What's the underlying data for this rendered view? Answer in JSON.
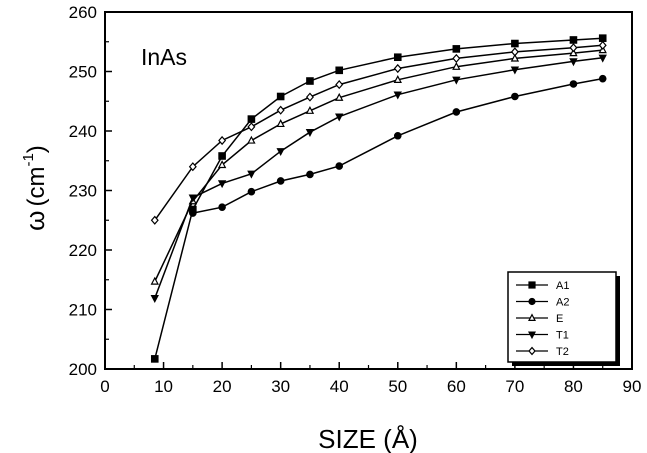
{
  "chart_data": {
    "type": "line",
    "annotation": "InAs",
    "xlabel": "SIZE (Å)",
    "ylabel_symbol": "ω",
    "ylabel_unit": "(cm",
    "ylabel_exp": "-1",
    "ylabel_close": ")",
    "xlim": [
      0,
      90
    ],
    "ylim": [
      200,
      260
    ],
    "xticks": [
      0,
      10,
      20,
      30,
      40,
      50,
      60,
      70,
      80,
      90
    ],
    "yticks": [
      200,
      210,
      220,
      230,
      240,
      250,
      260
    ],
    "grid": false,
    "legend_position": "lower-right",
    "series": [
      {
        "name": "A1",
        "marker": "square-filled",
        "x": [
          8.5,
          15,
          20,
          25,
          30,
          35,
          40,
          50,
          60,
          70,
          80,
          85
        ],
        "y": [
          201.7,
          226.8,
          235.8,
          242,
          245.8,
          248.4,
          250.2,
          252.4,
          253.8,
          254.7,
          255.3,
          255.6
        ]
      },
      {
        "name": "A2",
        "marker": "circle-filled",
        "x": [
          15,
          20,
          25,
          30,
          35,
          40,
          50,
          60,
          70,
          80,
          85
        ],
        "y": [
          226.2,
          227.2,
          229.8,
          231.6,
          232.7,
          234.1,
          239.2,
          243.2,
          245.8,
          247.9,
          248.8
        ]
      },
      {
        "name": "E",
        "marker": "triangle-up-open",
        "x": [
          8.5,
          15,
          20,
          25,
          30,
          35,
          40,
          50,
          60,
          70,
          80,
          85
        ],
        "y": [
          214.7,
          228.2,
          234.3,
          238.4,
          241.2,
          243.4,
          245.6,
          248.6,
          250.8,
          252.2,
          253.1,
          253.6
        ]
      },
      {
        "name": "T1",
        "marker": "triangle-down-filled",
        "x": [
          8.5,
          15,
          20,
          25,
          30,
          35,
          40,
          50,
          60,
          70,
          80,
          85
        ],
        "y": [
          211.9,
          228.8,
          231.2,
          232.8,
          236.6,
          239.8,
          242.4,
          246.1,
          248.6,
          250.3,
          251.7,
          252.3
        ]
      },
      {
        "name": "T2",
        "marker": "diamond-open",
        "x": [
          8.5,
          15,
          20,
          25,
          30,
          35,
          40,
          50,
          60,
          70,
          80,
          85
        ],
        "y": [
          225,
          234,
          238.4,
          240.7,
          243.5,
          245.7,
          247.8,
          250.5,
          252.2,
          253.3,
          254,
          254.4
        ]
      }
    ]
  }
}
